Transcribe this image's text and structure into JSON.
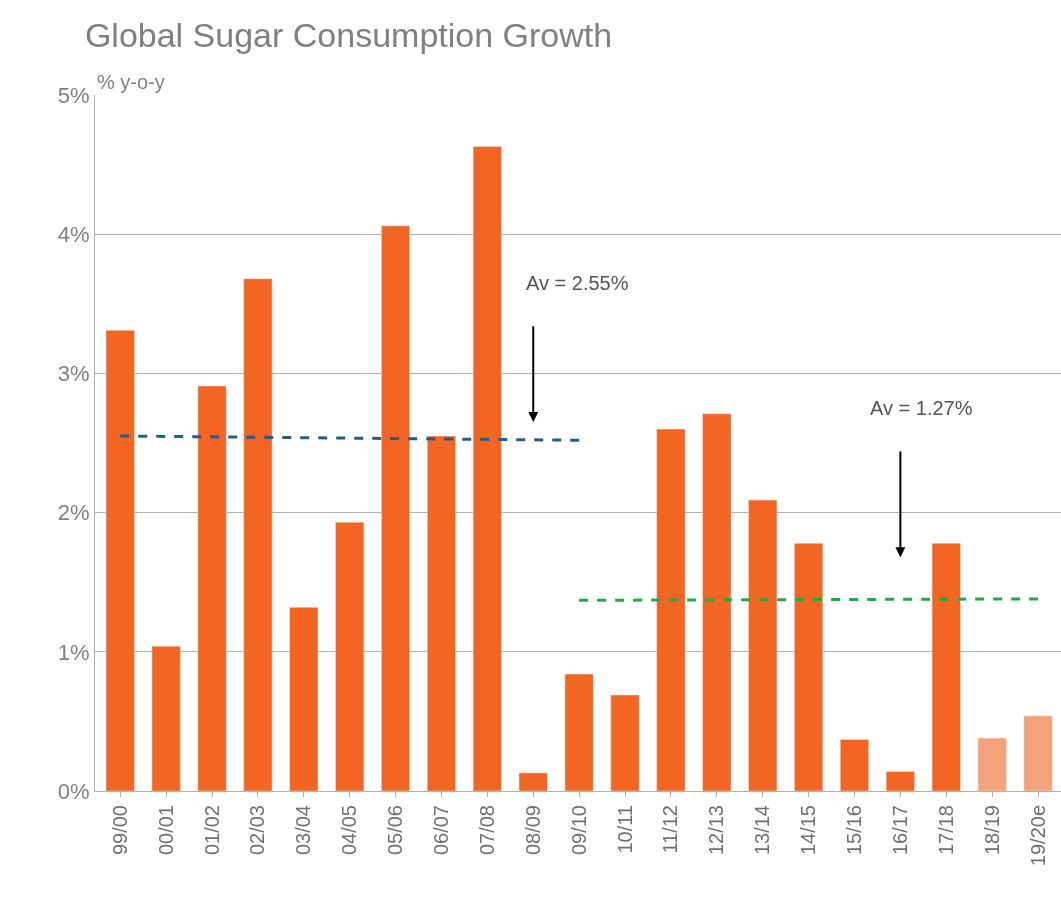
{
  "chart_data": {
    "type": "bar",
    "title": "Global Sugar Consumption Growth",
    "ylabel": "% y-o-y",
    "categories": [
      "99/00",
      "00/01",
      "01/02",
      "02/03",
      "03/04",
      "04/05",
      "05/06",
      "06/07",
      "07/08",
      "08/09",
      "09/10",
      "10/11",
      "11/12",
      "12/13",
      "13/14",
      "14/15",
      "15/16",
      "16/17",
      "17/18",
      "18/19",
      "19/20e"
    ],
    "series": [
      {
        "values": [
          3.31,
          1.04,
          2.91,
          3.68,
          1.32,
          1.93,
          4.06,
          2.55,
          4.63,
          0.13,
          0.84,
          0.69,
          2.6,
          2.71,
          2.09,
          1.78,
          0.37,
          0.14,
          1.78,
          0.38,
          0.54
        ],
        "colors": [
          "#f26522",
          "#f26522",
          "#f26522",
          "#f26522",
          "#f26522",
          "#f26522",
          "#f26522",
          "#f26522",
          "#f26522",
          "#f26522",
          "#f26522",
          "#f26522",
          "#f26522",
          "#f26522",
          "#f26522",
          "#f26522",
          "#f26522",
          "#f26522",
          "#f26522",
          "#f4a27a",
          "#f4a27a"
        ]
      },
      {
        "type": "line",
        "x": [
          "99/00",
          "09/10"
        ],
        "values": [
          2.55,
          2.52
        ],
        "color": "#1f5f8b",
        "line_style": "dashed",
        "marker": "none"
      },
      {
        "type": "line",
        "x": [
          "09/10",
          "19/20e"
        ],
        "values": [
          1.37,
          1.38
        ],
        "color": "#22a84a",
        "line_style": "dashed",
        "marker": "none"
      }
    ],
    "ylim": [
      0,
      5
    ],
    "yticks": [
      {
        "value": 0,
        "label": "0%"
      },
      {
        "value": 1,
        "label": "1%"
      },
      {
        "value": 2,
        "label": "2%"
      },
      {
        "value": 3,
        "label": "3%"
      },
      {
        "value": 4,
        "label": "4%"
      },
      {
        "value": 5,
        "label": "5%"
      }
    ],
    "grid": "y",
    "annotations": [
      "Av = 2.55%",
      "Av = 1.27%"
    ]
  }
}
